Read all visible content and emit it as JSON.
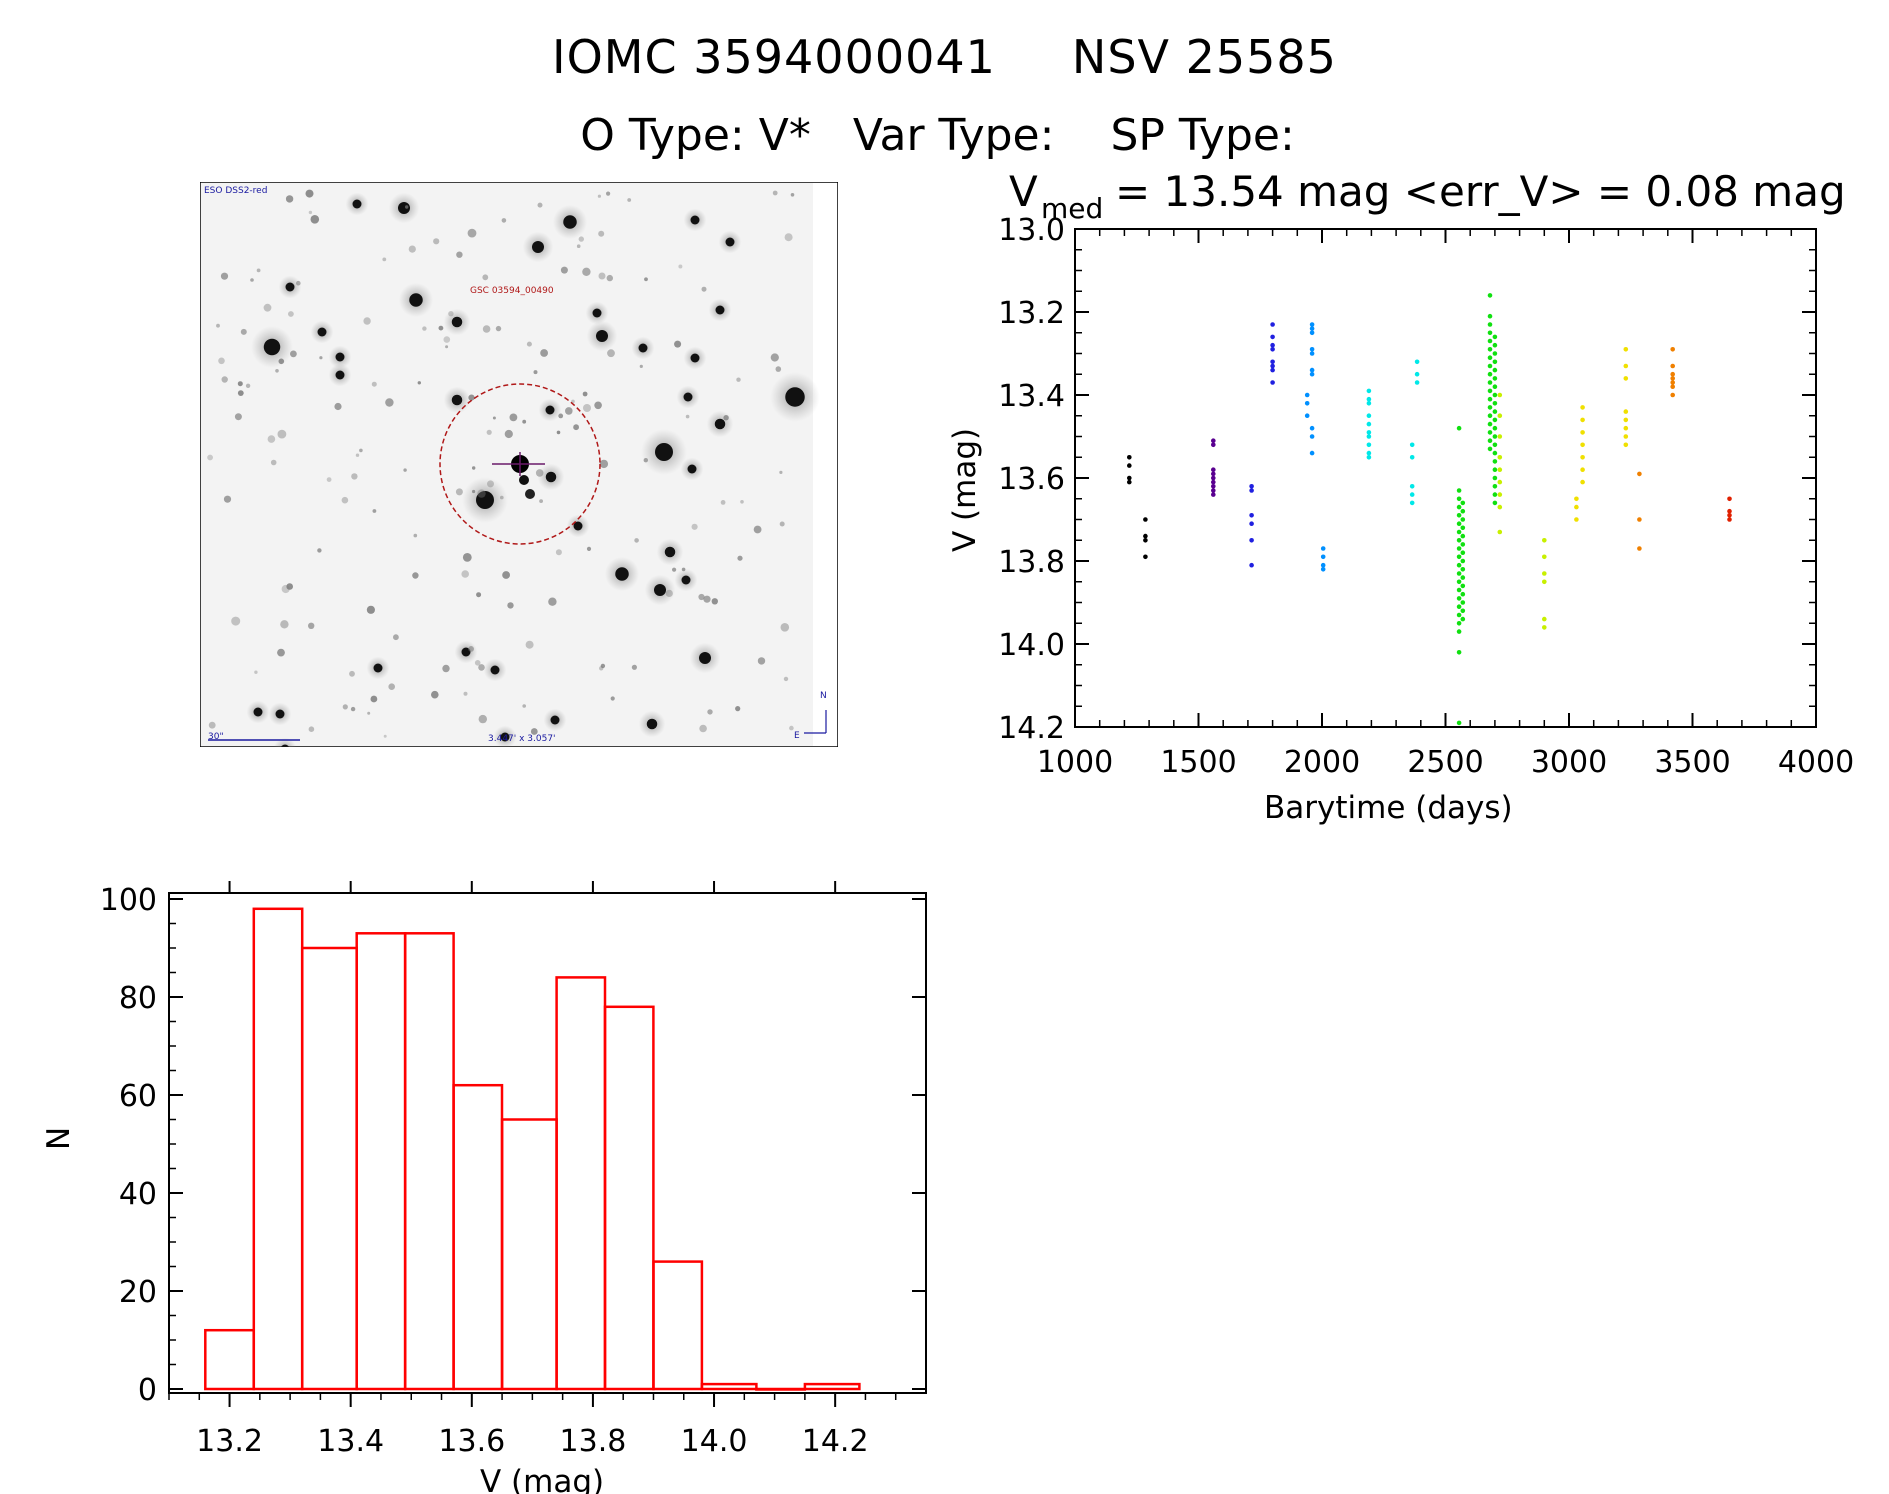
{
  "header": {
    "ids": [
      "IOMC 3594000041",
      "NSV 25585"
    ],
    "o_type_label": "O Type:",
    "o_type": "V*",
    "var_type_label": "Var Type:",
    "var_type": "",
    "sp_type_label": "SP Type:",
    "sp_type": ""
  },
  "finder": {
    "survey_label": "ESO DSS2-red",
    "target_label": "GSC 03594_00490",
    "scale_label": "30\"",
    "fov_label": "3.447' x 3.057'",
    "north_label": "N",
    "east_label": "E",
    "colors": {
      "circle": "#b01818",
      "labels": "#1a1aa0",
      "target_label": "#b01818"
    }
  },
  "chart_data": [
    {
      "type": "scatter",
      "title_prefix": "V",
      "title_subscript": "med",
      "title_rest": "= 13.54 mag <err_V> = 0.08 mag",
      "xlabel": "Barytime (days)",
      "ylabel": "V (mag)",
      "xlim": [
        1000,
        4000
      ],
      "ylim": [
        14.2,
        13.0
      ],
      "xticks": [
        "1000",
        "1500",
        "2000",
        "2500",
        "3000",
        "3500",
        "4000"
      ],
      "yticks": [
        "13.0",
        "13.2",
        "13.4",
        "13.6",
        "13.8",
        "14.0",
        "14.2"
      ],
      "y_inverted": true,
      "color_by_time": true,
      "color_scale": [
        "#000000",
        "#5a0090",
        "#2020e0",
        "#0090ff",
        "#00e8e8",
        "#10e010",
        "#c8f000",
        "#f0e000",
        "#f08000",
        "#e02000"
      ],
      "series": [
        {
          "x": 1220,
          "values": [
            13.55,
            13.57,
            13.6,
            13.61
          ]
        },
        {
          "x": 1285,
          "values": [
            13.7,
            13.74,
            13.75,
            13.79
          ]
        },
        {
          "x": 1560,
          "values": [
            13.51,
            13.52,
            13.58,
            13.59,
            13.6,
            13.61,
            13.62,
            13.63,
            13.64
          ]
        },
        {
          "x": 1715,
          "values": [
            13.62,
            13.63,
            13.69,
            13.71,
            13.75,
            13.81
          ]
        },
        {
          "x": 1800,
          "values": [
            13.23,
            13.26,
            13.28,
            13.29,
            13.32,
            13.33,
            13.34,
            13.37
          ]
        },
        {
          "x": 1940,
          "values": [
            13.4,
            13.42,
            13.45
          ]
        },
        {
          "x": 1960,
          "values": [
            13.23,
            13.24,
            13.25,
            13.29,
            13.3,
            13.34,
            13.35,
            13.48,
            13.5,
            13.54
          ]
        },
        {
          "x": 2005,
          "values": [
            13.77,
            13.79,
            13.81,
            13.82
          ]
        },
        {
          "x": 2190,
          "values": [
            13.39,
            13.41,
            13.42,
            13.45,
            13.47,
            13.49,
            13.5,
            13.52,
            13.54,
            13.55
          ]
        },
        {
          "x": 2365,
          "values": [
            13.52,
            13.55,
            13.62,
            13.64,
            13.66
          ]
        },
        {
          "x": 2385,
          "values": [
            13.32,
            13.35,
            13.37
          ]
        },
        {
          "x": 2555,
          "values": [
            13.48,
            13.63,
            13.65,
            13.67,
            13.69,
            13.71,
            13.73,
            13.75,
            13.77,
            13.79,
            13.81,
            13.83,
            13.85,
            13.87,
            13.89,
            13.91,
            13.93,
            13.95,
            13.97,
            14.02,
            14.19
          ]
        },
        {
          "x": 2570,
          "values": [
            13.66,
            13.68,
            13.7,
            13.72,
            13.74,
            13.76,
            13.78,
            13.8,
            13.82,
            13.84,
            13.86,
            13.88,
            13.9,
            13.92,
            13.94
          ]
        },
        {
          "x": 2680,
          "values": [
            13.16,
            13.21,
            13.23,
            13.25,
            13.27,
            13.29,
            13.31,
            13.33,
            13.35,
            13.37,
            13.39,
            13.41,
            13.43,
            13.45,
            13.47,
            13.49,
            13.51,
            13.53
          ]
        },
        {
          "x": 2700,
          "values": [
            13.26,
            13.28,
            13.3,
            13.32,
            13.34,
            13.36,
            13.38,
            13.4,
            13.42,
            13.44,
            13.46,
            13.48,
            13.5,
            13.52,
            13.54,
            13.56,
            13.58,
            13.6,
            13.62,
            13.64,
            13.66
          ]
        },
        {
          "x": 2720,
          "values": [
            13.4,
            13.45,
            13.5,
            13.55,
            13.58,
            13.61,
            13.64,
            13.67,
            13.73
          ]
        },
        {
          "x": 2900,
          "values": [
            13.75,
            13.79,
            13.83,
            13.85,
            13.94,
            13.96
          ]
        },
        {
          "x": 3030,
          "values": [
            13.65,
            13.67,
            13.7
          ]
        },
        {
          "x": 3055,
          "values": [
            13.43,
            13.46,
            13.49,
            13.52,
            13.55,
            13.58,
            13.61
          ]
        },
        {
          "x": 3230,
          "values": [
            13.29,
            13.33,
            13.36,
            13.44,
            13.46,
            13.48,
            13.5,
            13.52
          ]
        },
        {
          "x": 3285,
          "values": [
            13.59,
            13.7,
            13.77
          ]
        },
        {
          "x": 3420,
          "values": [
            13.29,
            13.33,
            13.35,
            13.36,
            13.37,
            13.38,
            13.4
          ]
        },
        {
          "x": 3650,
          "values": [
            13.65,
            13.68,
            13.69,
            13.7
          ]
        }
      ]
    },
    {
      "type": "bar",
      "subtype": "histogram",
      "xlabel": "V (mag)",
      "ylabel": "N",
      "xlim": [
        13.1,
        14.35
      ],
      "ylim": [
        0,
        100
      ],
      "xticks": [
        "13.2",
        "13.4",
        "13.6",
        "13.8",
        "14.0",
        "14.2"
      ],
      "yticks": [
        "0",
        "20",
        "40",
        "60",
        "80",
        "100"
      ],
      "bin_edges": [
        13.16,
        13.24,
        13.32,
        13.41,
        13.49,
        13.57,
        13.65,
        13.74,
        13.82,
        13.9,
        13.98,
        14.07,
        14.15,
        14.24
      ],
      "values": [
        12,
        98,
        90,
        93,
        93,
        62,
        55,
        84,
        78,
        26,
        1,
        0,
        1
      ],
      "color": "#ff0000"
    }
  ]
}
